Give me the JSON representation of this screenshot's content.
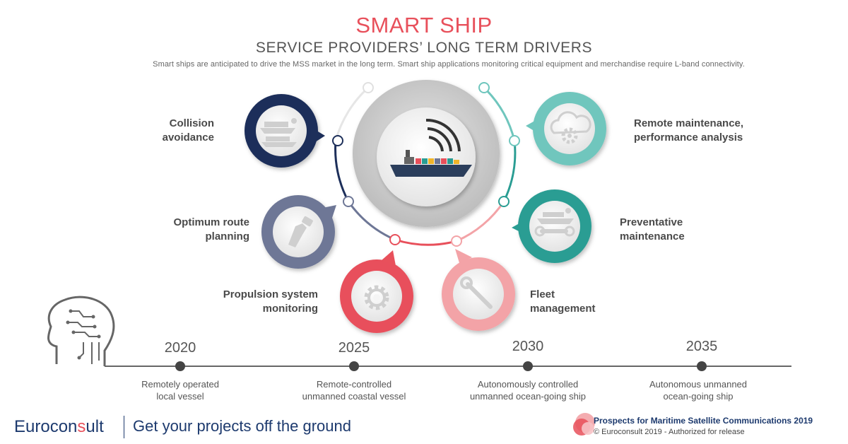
{
  "header": {
    "title": "SMART SHIP",
    "subtitle": "SERVICE PROVIDERS’ LONG TERM DRIVERS",
    "intro": "Smart ships are anticipated to drive the MSS market in the long term. Smart ship applications monitoring critical equipment and merchandise require L-band connectivity."
  },
  "drivers": [
    {
      "label_line1": "Collision",
      "label_line2": "avoidance",
      "icon": "ship-radar-icon",
      "color": "#1d2f5a"
    },
    {
      "label_line1": "Optimum route",
      "label_line2": "planning",
      "icon": "fuel-pump-icon",
      "color": "#6e7796"
    },
    {
      "label_line1": "Propulsion system",
      "label_line2": "monitoring",
      "icon": "gear-icon",
      "color": "#e8505b"
    },
    {
      "label_line1": "Fleet",
      "label_line2": "management",
      "icon": "wrench-icon",
      "color": "#f3a3a7"
    },
    {
      "label_line1": "Preventative",
      "label_line2": "maintenance",
      "icon": "ship-wrench-icon",
      "color": "#2a9d93"
    },
    {
      "label_line1": "Remote maintenance,",
      "label_line2": "performance analysis",
      "icon": "cloud-gear-icon",
      "color": "#6fc6bd"
    }
  ],
  "center": {
    "icon": "connected-ship-icon"
  },
  "timeline": [
    {
      "year": "2020",
      "line1": "Remotely operated",
      "line2": "local vessel"
    },
    {
      "year": "2025",
      "line1": "Remote-controlled",
      "line2": "unmanned coastal vessel"
    },
    {
      "year": "2030",
      "line1": "Autonomously  controlled",
      "line2": "unmanned ocean-going ship"
    },
    {
      "year": "2035",
      "line1": "Autonomous  unmanned",
      "line2": "ocean-going ship"
    }
  ],
  "timeline_icon": "ai-head-icon",
  "footer": {
    "brand_pre": "Eurocon",
    "brand_o": "s",
    "brand_post": "ult",
    "tagline": "Get your projects off the ground",
    "publication": "Prospects for Maritime Satellite Communications 2019",
    "copyright": "© Euroconsult 2019 - Authorized for release"
  },
  "colors": {
    "accent": "#e8505b",
    "navy": "#1d3a6e",
    "teal": "#2a9d93"
  }
}
